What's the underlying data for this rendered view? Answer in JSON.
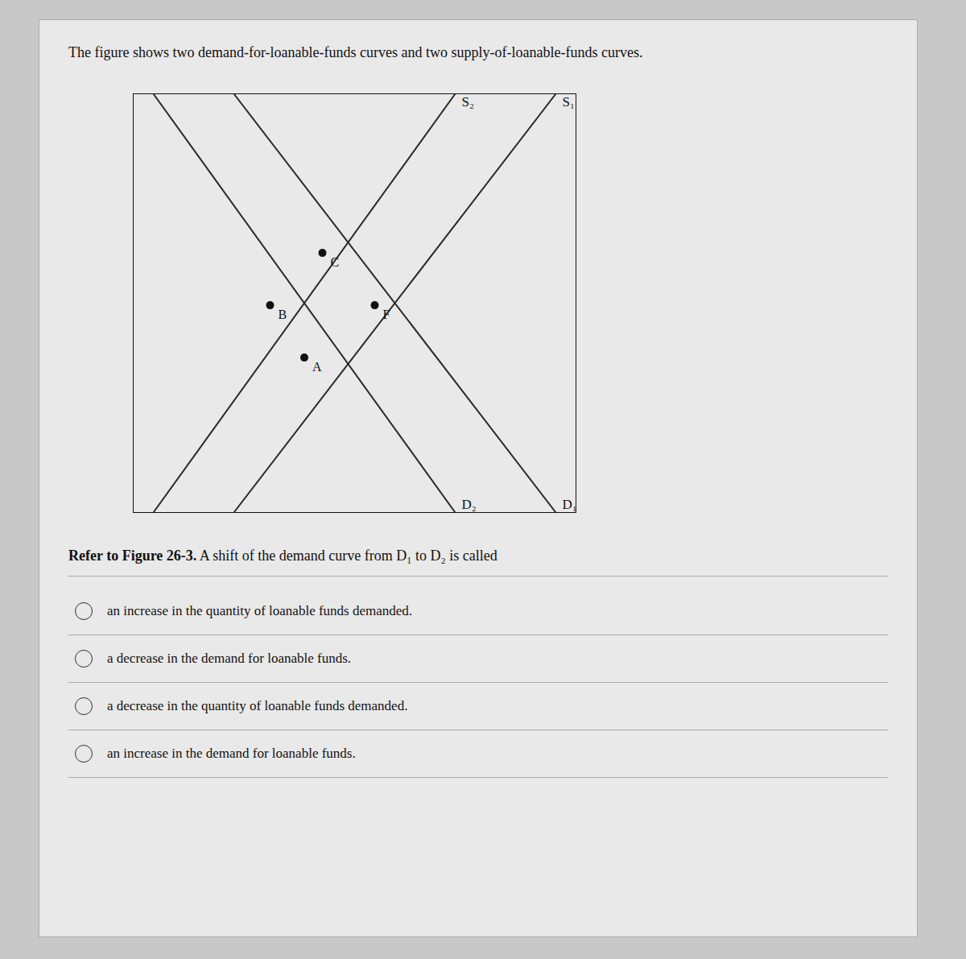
{
  "chart_data": {
    "type": "line",
    "title": "The figure shows two demand-for-loanable-funds curves and two supply-of-loanable-funds curves.",
    "series": [
      {
        "name": "S₁",
        "color": "#2a2a2a",
        "x": [
          1.5,
          9.5
        ],
        "values": [
          0,
          10
        ]
      },
      {
        "name": "S₂",
        "color": "#2a2a2a",
        "x": [
          -0.5,
          7.0
        ],
        "values": [
          0,
          10
        ]
      },
      {
        "name": "D₁",
        "color": "#2a2a2a",
        "x": [
          1.5,
          9.5
        ],
        "values": [
          10,
          0
        ]
      },
      {
        "name": "D₂",
        "color": "#2a2a2a",
        "x": [
          -0.5,
          7.0
        ],
        "values": [
          10,
          0
        ]
      }
    ],
    "points": [
      {
        "name": "A",
        "color": "#111111",
        "x": 3.25,
        "y": 3.7
      },
      {
        "name": "B",
        "color": "#111111",
        "x": 2.4,
        "y": 4.95
      },
      {
        "name": "C",
        "color": "#111111",
        "x": 3.7,
        "y": 6.2
      },
      {
        "name": "F",
        "color": "#111111",
        "x": 5.0,
        "y": 4.95
      }
    ],
    "xlim": [
      -1,
      10
    ],
    "ylim": [
      0,
      10
    ],
    "xticks": [],
    "yticks": [],
    "tick_labels": false,
    "grid": false,
    "question": {
      "bold": "Refer to Figure 26-3.",
      "regular": " A shift of the demand curve from D₁ to D₂ is called"
    },
    "options": [
      "an increase in the quantity of loanable funds demanded.",
      "a decrease in the demand for loanable funds.",
      "a decrease in the quantity of loanable funds demanded.",
      "an increase in the demand for loanable funds."
    ]
  }
}
